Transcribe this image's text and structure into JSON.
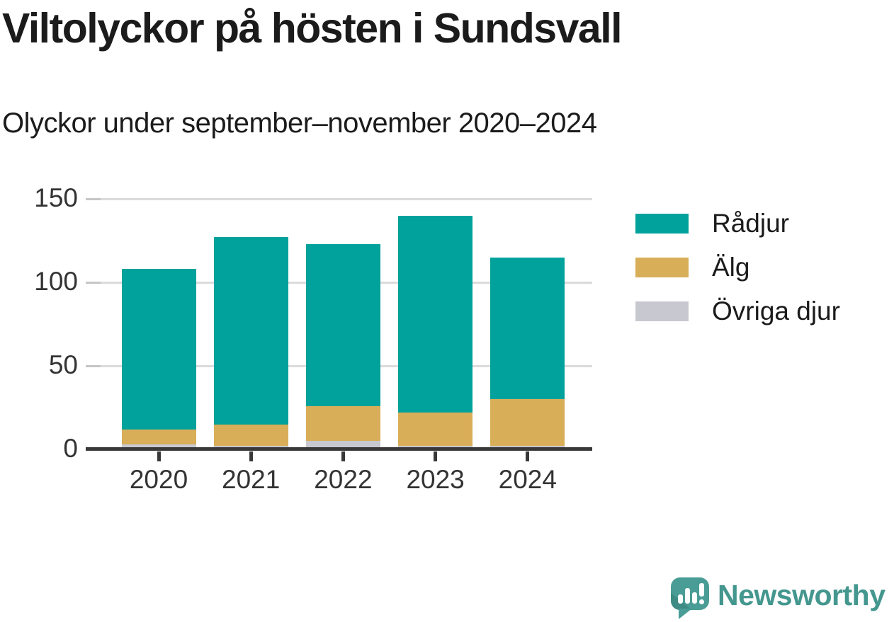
{
  "title": "Viltolyckor på hösten i Sundsvall",
  "subtitle": "Olyckor under september–november 2020–2024",
  "chart_data": {
    "type": "bar",
    "stacked": true,
    "title": "Viltolyckor på hösten i Sundsvall",
    "subtitle": "Olyckor under september–november 2020–2024",
    "categories": [
      "2020",
      "2021",
      "2022",
      "2023",
      "2024"
    ],
    "series": [
      {
        "name": "Rådjur",
        "color": "#00a29b",
        "values": [
          96,
          112,
          97,
          118,
          85
        ]
      },
      {
        "name": "Älg",
        "color": "#d9ae58",
        "values": [
          9,
          13,
          21,
          20,
          28
        ]
      },
      {
        "name": "Övriga djur",
        "color": "#c8c8d0",
        "values": [
          3,
          2,
          5,
          2,
          2
        ]
      }
    ],
    "stack_bottom_to_top": [
      "Övriga djur",
      "Älg",
      "Rådjur"
    ],
    "totals": [
      108,
      127,
      123,
      140,
      115
    ],
    "xlabel": "",
    "ylabel": "",
    "yticks": [
      0,
      50,
      100,
      150
    ],
    "ylim": [
      0,
      150
    ],
    "grid": "horizontal",
    "legend_position": "right"
  },
  "colors": {
    "radjur": "#00a29b",
    "alg": "#d9ae58",
    "ovriga_djur": "#c8c8d0",
    "axis": "#383838",
    "gridline": "#dbdbdb",
    "text": "#1b1b1b",
    "tick_label": "#333333",
    "logo_teal": "#44978e"
  },
  "branding": {
    "logo_text": "Newsworthy"
  }
}
